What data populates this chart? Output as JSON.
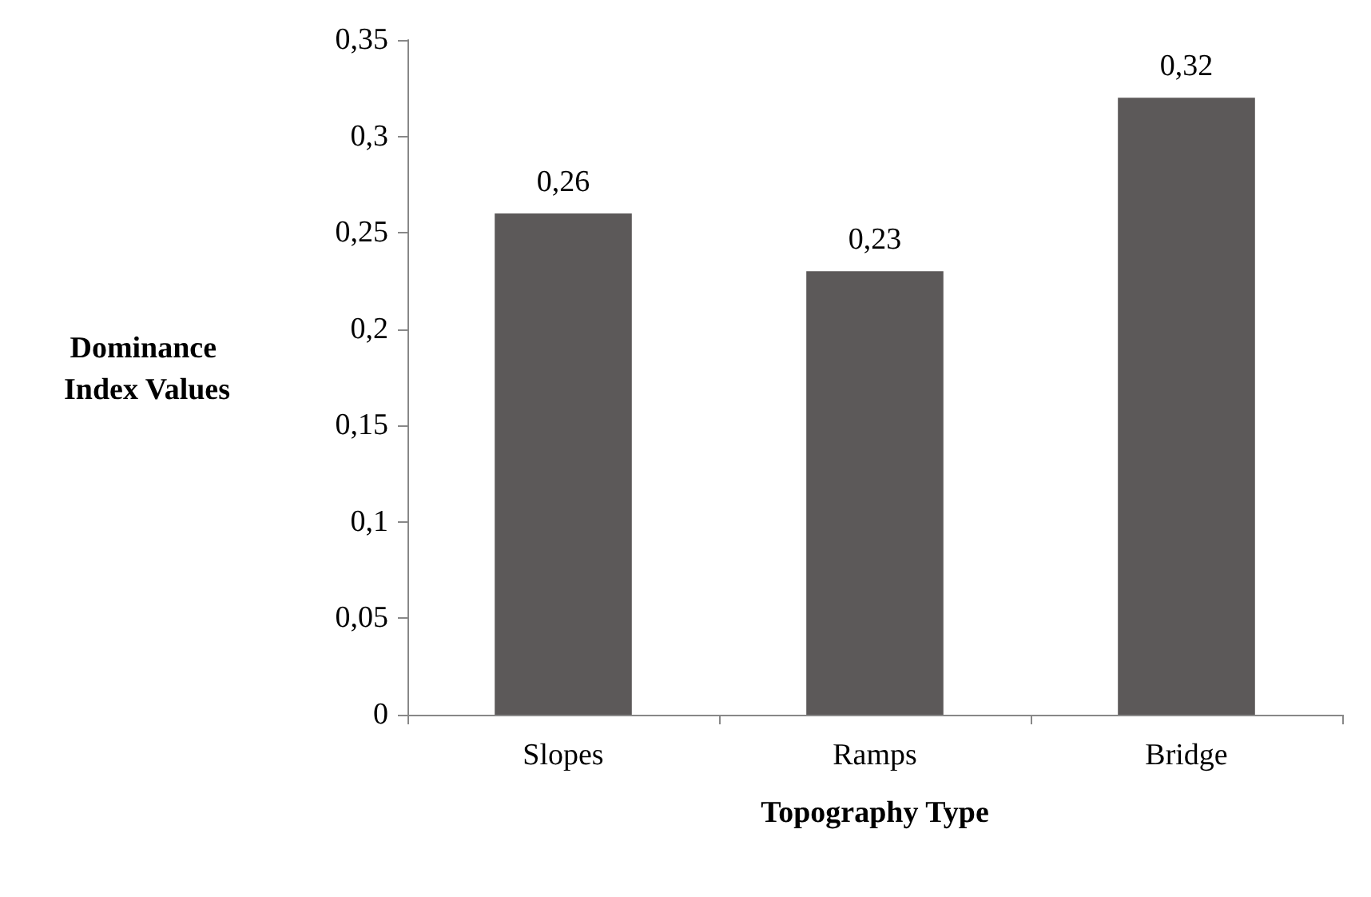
{
  "chart_data": {
    "type": "bar",
    "xlabel": "Topography Type",
    "ylabel": "Dominance Index Values",
    "categories": [
      "Slopes",
      "Ramps",
      "Bridge"
    ],
    "values": [
      0.26,
      0.23,
      0.32
    ],
    "color": "#5c5959",
    "value_labels": [
      "0,26",
      "0,23",
      "0,32"
    ],
    "ylim": [
      0,
      0.35
    ],
    "yticks": [
      {
        "value": 0,
        "label": "0"
      },
      {
        "value": 0.05,
        "label": "0,05"
      },
      {
        "value": 0.1,
        "label": "0,1"
      },
      {
        "value": 0.15,
        "label": "0,15"
      },
      {
        "value": 0.2,
        "label": "0,2"
      },
      {
        "value": 0.25,
        "label": "0,25"
      },
      {
        "value": 0.3,
        "label": "0,3"
      },
      {
        "value": 0.35,
        "label": "0,35"
      }
    ],
    "grid": false
  }
}
